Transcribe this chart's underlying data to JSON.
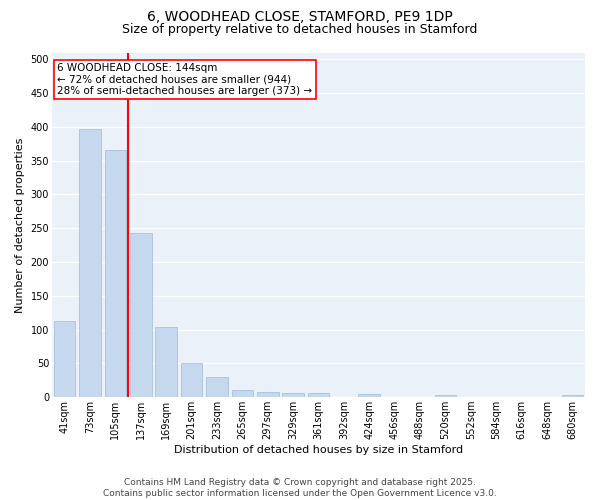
{
  "title_line1": "6, WOODHEAD CLOSE, STAMFORD, PE9 1DP",
  "title_line2": "Size of property relative to detached houses in Stamford",
  "xlabel": "Distribution of detached houses by size in Stamford",
  "ylabel": "Number of detached properties",
  "categories": [
    "41sqm",
    "73sqm",
    "105sqm",
    "137sqm",
    "169sqm",
    "201sqm",
    "233sqm",
    "265sqm",
    "297sqm",
    "329sqm",
    "361sqm",
    "392sqm",
    "424sqm",
    "456sqm",
    "488sqm",
    "520sqm",
    "552sqm",
    "584sqm",
    "616sqm",
    "648sqm",
    "680sqm"
  ],
  "values": [
    112,
    397,
    366,
    243,
    104,
    50,
    30,
    10,
    8,
    6,
    6,
    0,
    4,
    0,
    0,
    3,
    0,
    0,
    0,
    0,
    3
  ],
  "bar_color": "#c5d8ed",
  "bar_edgecolor": "#a0bcd8",
  "vline_index": 3,
  "vline_color": "red",
  "annotation_text": "6 WOODHEAD CLOSE: 144sqm\n← 72% of detached houses are smaller (944)\n28% of semi-detached houses are larger (373) →",
  "annotation_box_edgecolor": "red",
  "annotation_box_facecolor": "white",
  "ylim": [
    0,
    510
  ],
  "yticks": [
    0,
    50,
    100,
    150,
    200,
    250,
    300,
    350,
    400,
    450,
    500
  ],
  "bg_color": "#eaf1f8",
  "grid_color": "white",
  "footer_line1": "Contains HM Land Registry data © Crown copyright and database right 2025.",
  "footer_line2": "Contains public sector information licensed under the Open Government Licence v3.0.",
  "title_fontsize": 10,
  "subtitle_fontsize": 9,
  "axis_label_fontsize": 8,
  "tick_fontsize": 7,
  "annotation_fontsize": 7.5,
  "footer_fontsize": 6.5
}
